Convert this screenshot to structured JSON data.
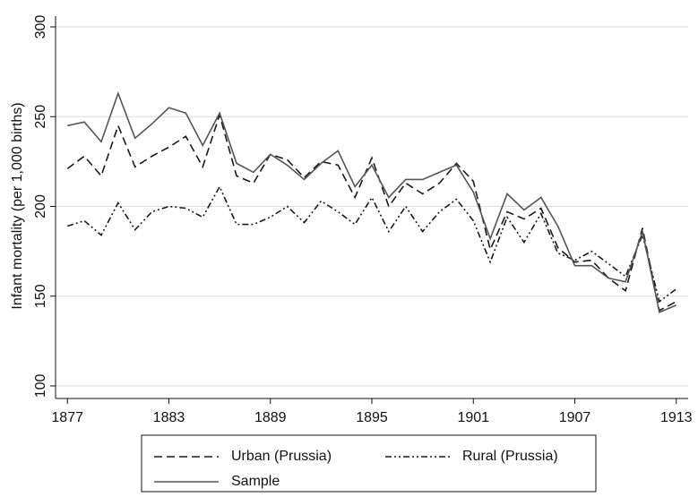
{
  "chart_data": {
    "type": "line",
    "y_label": "Infant mortality (per 1,000 births)",
    "x": [
      1877,
      1878,
      1879,
      1880,
      1881,
      1882,
      1883,
      1884,
      1885,
      1886,
      1887,
      1888,
      1889,
      1890,
      1891,
      1892,
      1893,
      1894,
      1895,
      1896,
      1897,
      1898,
      1899,
      1900,
      1901,
      1902,
      1903,
      1904,
      1905,
      1906,
      1907,
      1908,
      1909,
      1910,
      1911,
      1912,
      1913
    ],
    "series": [
      {
        "name": "Urban (Prussia)",
        "color": "#1a1a1a",
        "dash": "dashed",
        "values": [
          221,
          228,
          217,
          245,
          222,
          228,
          233,
          239,
          222,
          251,
          217,
          213,
          229,
          226,
          216,
          225,
          223,
          205,
          227,
          200,
          213,
          207,
          213,
          224,
          214,
          176,
          197,
          193,
          199,
          177,
          169,
          170,
          160,
          153,
          188,
          142,
          147
        ]
      },
      {
        "name": "Rural (Prussia)",
        "color": "#1a1a1a",
        "dash": "dashdot",
        "values": [
          189,
          192,
          184,
          202,
          187,
          197,
          200,
          199,
          194,
          211,
          190,
          190,
          194,
          200,
          191,
          203,
          197,
          190,
          205,
          186,
          200,
          186,
          197,
          204,
          192,
          169,
          194,
          180,
          196,
          174,
          170,
          175,
          168,
          161,
          184,
          147,
          154
        ]
      },
      {
        "name": "Sample",
        "color": "#555555",
        "dash": "solid",
        "values": [
          245,
          247,
          236,
          263,
          238,
          246,
          255,
          252,
          234,
          252,
          224,
          219,
          229,
          223,
          215,
          224,
          231,
          211,
          223,
          205,
          215,
          215,
          219,
          223,
          208,
          182,
          207,
          198,
          205,
          189,
          167,
          167,
          160,
          158,
          186,
          141,
          145
        ]
      }
    ],
    "xlim": [
      1876.3,
      1913.7
    ],
    "ylim": [
      93,
      306
    ],
    "xticks": [
      1877,
      1883,
      1889,
      1895,
      1901,
      1907,
      1913
    ],
    "yticks": [
      100,
      150,
      200,
      250,
      300
    ],
    "grid": true,
    "legend": "bottom"
  }
}
